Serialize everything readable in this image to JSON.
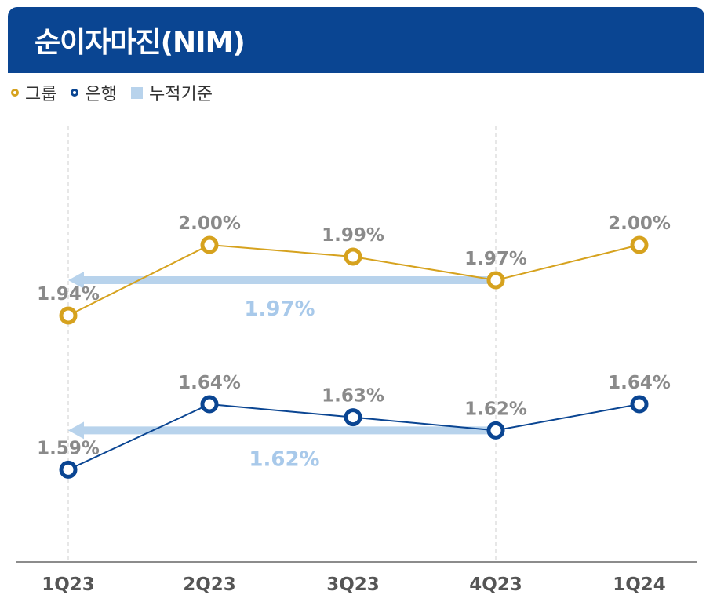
{
  "header": {
    "title": "순이자마진(NIM)"
  },
  "legend": {
    "group_label": "그룹",
    "bank_label": "은행",
    "cumulative_label": "누적기준"
  },
  "colors": {
    "header": "#0a4592",
    "group": "#d6a21e",
    "bank": "#0a4592",
    "cumulative": "#b8d3ec",
    "data_label": "#8a8a8a",
    "cumulative_label": "#a8c9ea",
    "axis_label": "#555555"
  },
  "chart_data": {
    "type": "line",
    "categories": [
      "1Q23",
      "2Q23",
      "3Q23",
      "4Q23",
      "1Q24"
    ],
    "series": [
      {
        "key": "group",
        "name": "그룹",
        "values": [
          1.94,
          2.0,
          1.99,
          1.97,
          2.0
        ],
        "labels": [
          "1.94%",
          "2.00%",
          "1.99%",
          "1.97%",
          "2.00%"
        ]
      },
      {
        "key": "bank",
        "name": "은행",
        "values": [
          1.59,
          1.64,
          1.63,
          1.62,
          1.64
        ],
        "labels": [
          "1.59%",
          "1.64%",
          "1.63%",
          "1.62%",
          "1.64%"
        ]
      }
    ],
    "cumulative": [
      {
        "series": "group",
        "name": "누적기준",
        "value": 1.97,
        "label": "1.97%",
        "from": "4Q23",
        "to": "1Q23"
      },
      {
        "series": "bank",
        "name": "누적기준",
        "value": 1.62,
        "label": "1.62%",
        "from": "4Q23",
        "to": "1Q23"
      }
    ],
    "xlabel": "",
    "ylabel": "",
    "gridlines": "dashed vertical at 1Q23 and 4Q23",
    "legend_position": "top-left"
  }
}
